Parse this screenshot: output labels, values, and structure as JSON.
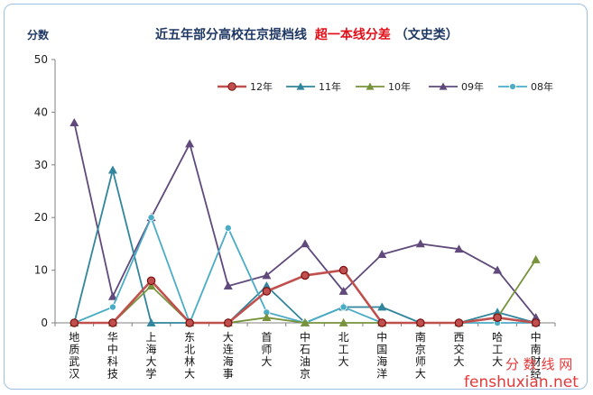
{
  "chart_data": {
    "type": "line",
    "title": "近五年部分高校在京提档线",
    "title_highlight": "超一本线分差",
    "title_suffix": "（文史类）",
    "ylabel": "分数",
    "xlabel": "",
    "ylim": [
      0,
      50
    ],
    "yticks": [
      "0",
      "10",
      "20",
      "30",
      "40",
      "50"
    ],
    "grid": false,
    "legend_position": "top-right",
    "categories": [
      "地质武汉",
      "华中科技",
      "上海大学",
      "东北林大",
      "大连海事",
      "首师大",
      "中石油京",
      "北工大",
      "中国海洋",
      "南京师大",
      "西交大",
      "哈工大",
      "中南财经"
    ],
    "series": [
      {
        "name": "12年",
        "color": "#c0504d",
        "marker": "circle",
        "values": [
          0,
          0,
          8,
          0,
          0,
          6,
          9,
          10,
          0,
          0,
          0,
          1,
          0
        ]
      },
      {
        "name": "11年",
        "color": "#31859c",
        "marker": "triangle",
        "values": [
          0,
          29,
          0,
          0,
          0,
          7,
          0,
          3,
          3,
          0,
          0,
          2,
          0
        ]
      },
      {
        "name": "10年",
        "color": "#77933c",
        "marker": "triangle",
        "values": [
          0,
          0,
          7,
          0,
          0,
          1,
          0,
          0,
          0,
          0,
          0,
          1,
          12
        ]
      },
      {
        "name": "09年",
        "color": "#604a7b",
        "marker": "triangle",
        "values": [
          38,
          5,
          20,
          34,
          7,
          9,
          15,
          6,
          13,
          15,
          14,
          10,
          1
        ]
      },
      {
        "name": "08年",
        "color": "#4bacc6",
        "marker": "circle",
        "values": [
          0,
          3,
          20,
          0,
          18,
          2,
          0,
          3,
          0,
          0,
          0,
          0,
          0
        ]
      }
    ]
  },
  "watermark": {
    "cn": "分 数 线 网",
    "en": "fenshuxian.net"
  }
}
